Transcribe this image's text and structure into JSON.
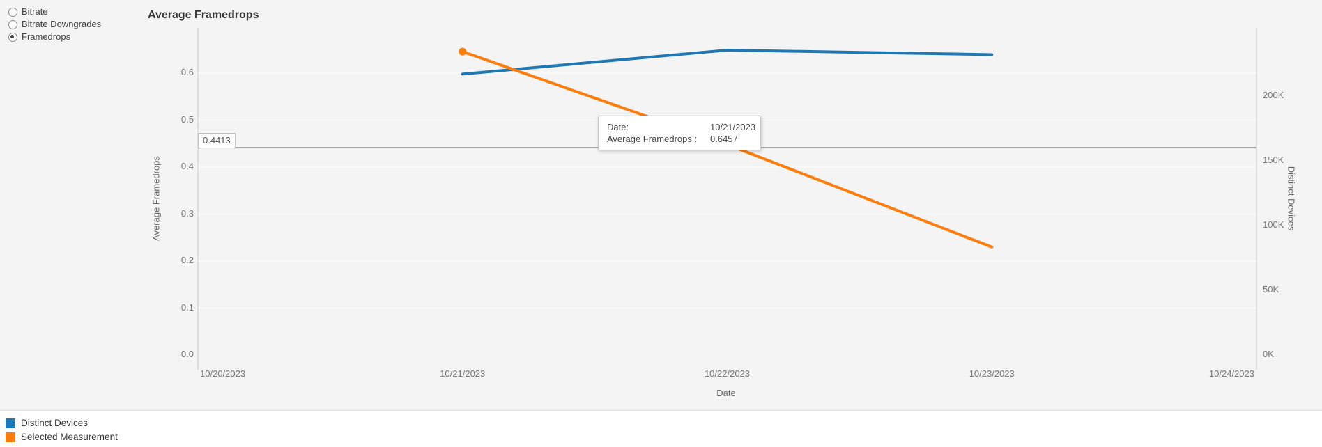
{
  "controls": {
    "options": [
      {
        "label": "Bitrate",
        "selected": false
      },
      {
        "label": "Bitrate Downgrades",
        "selected": false
      },
      {
        "label": "Framedrops",
        "selected": true
      }
    ]
  },
  "chart_data": {
    "type": "line",
    "title": "Average Framedrops",
    "xlabel": "Date",
    "x_ticks": [
      "10/20/2023",
      "10/21/2023",
      "10/22/2023",
      "10/23/2023",
      "10/24/2023"
    ],
    "y_left": {
      "label": "Average Framedrops",
      "range": [
        0,
        0.7
      ],
      "ticks": [
        {
          "v": 0.0,
          "label": "0.0"
        },
        {
          "v": 0.1,
          "label": "0.1"
        },
        {
          "v": 0.2,
          "label": "0.2"
        },
        {
          "v": 0.3,
          "label": "0.3"
        },
        {
          "v": 0.4,
          "label": "0.4"
        },
        {
          "v": 0.5,
          "label": "0.5"
        },
        {
          "v": 0.6,
          "label": "0.6"
        }
      ]
    },
    "y_right": {
      "label": "Distinct Devices",
      "range": [
        0,
        250000
      ],
      "ticks": [
        {
          "v": 0,
          "label": "0K"
        },
        {
          "v": 50000,
          "label": "50K"
        },
        {
          "v": 100000,
          "label": "100K"
        },
        {
          "v": 150000,
          "label": "150K"
        },
        {
          "v": 200000,
          "label": "200K"
        }
      ]
    },
    "series": [
      {
        "name": "Distinct Devices",
        "color": "#1f77b4",
        "axis": "right",
        "x": [
          "10/21/2023",
          "10/22/2023",
          "10/23/2023"
        ],
        "values": [
          217000,
          235500,
          232000
        ],
        "start_marker": false
      },
      {
        "name": "Selected Measurement",
        "color": "#fb7d0e",
        "axis": "left",
        "x": [
          "10/21/2023",
          "10/22/2023",
          "10/23/2023"
        ],
        "values": [
          0.6457,
          0.448,
          0.23
        ],
        "start_marker": true
      }
    ],
    "reference_line": {
      "value": 0.4413,
      "label": "0.4413"
    },
    "grid": "horizontal",
    "legend_position": "bottom-left"
  },
  "tooltip": {
    "rows": [
      {
        "label": "Date:",
        "value": "10/21/2023"
      },
      {
        "label": "Average Framedrops :",
        "value": "0.6457"
      }
    ]
  },
  "legend": {
    "items": [
      {
        "label": "Distinct Devices",
        "color": "#1f77b4"
      },
      {
        "label": "Selected Measurement",
        "color": "#fb7d0e"
      }
    ]
  }
}
